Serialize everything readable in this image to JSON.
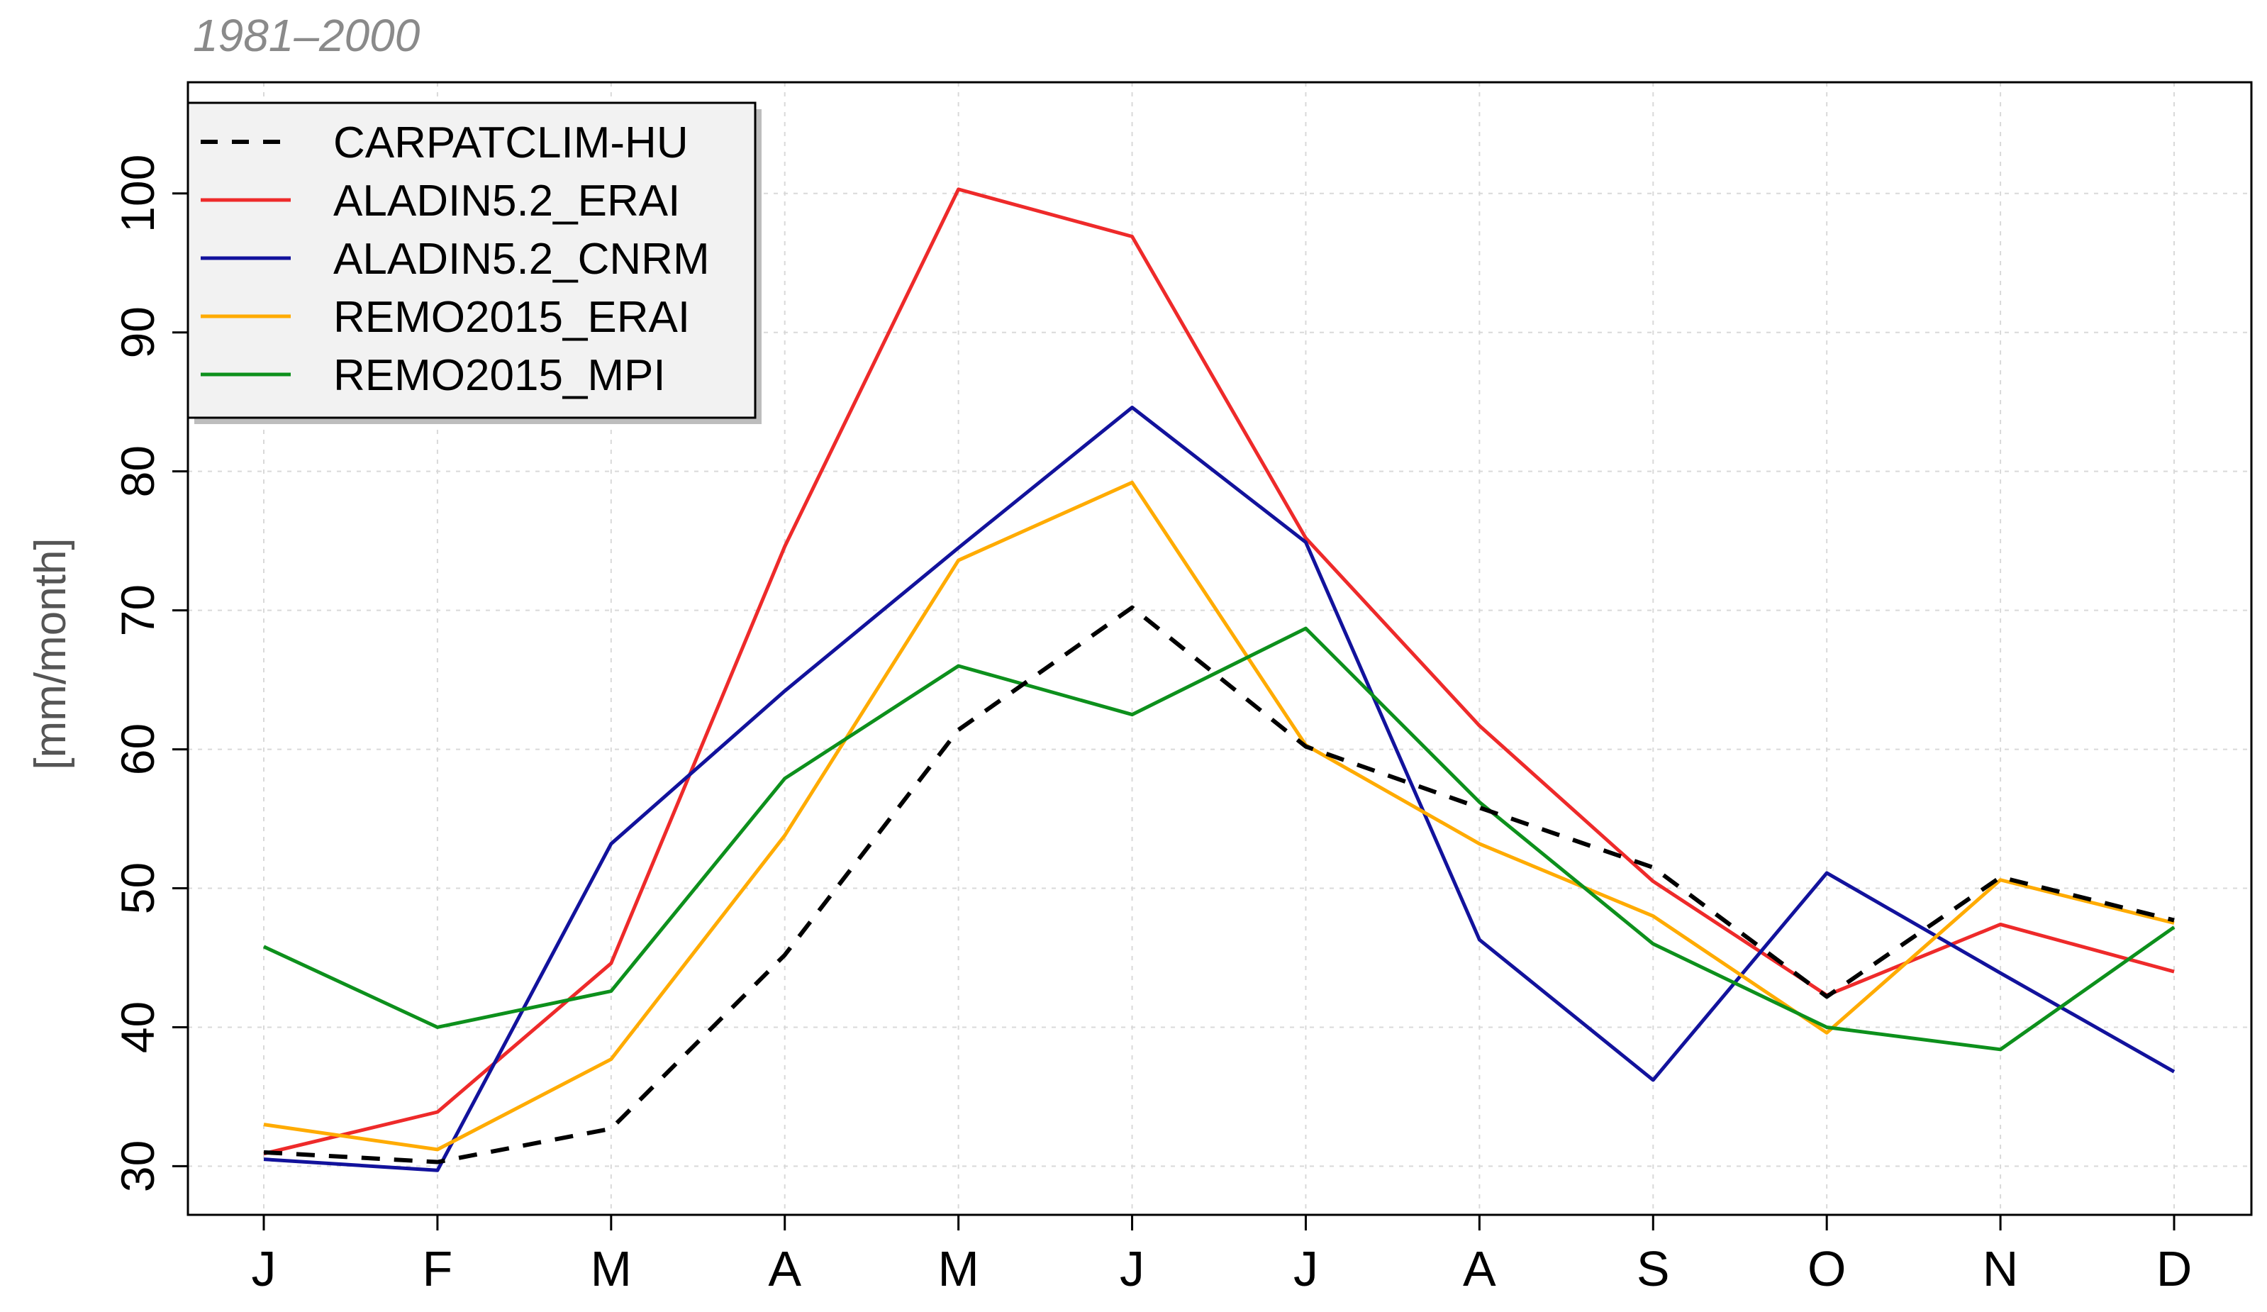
{
  "chart_data": {
    "type": "line",
    "title": "1981–2000",
    "xlabel": "",
    "ylabel": "[mm/month]",
    "categories": [
      "J",
      "F",
      "M",
      "A",
      "M",
      "J",
      "J",
      "A",
      "S",
      "O",
      "N",
      "D"
    ],
    "yticks": [
      30,
      40,
      50,
      60,
      70,
      80,
      90,
      100
    ],
    "ylim": [
      26.5,
      108
    ],
    "grid": true,
    "legend_position": "top-left",
    "series": [
      {
        "name": "CARPATCLIM-HU",
        "color": "#000000",
        "dashed": true,
        "values": [
          31.0,
          30.3,
          32.7,
          45.2,
          61.4,
          70.2,
          60.2,
          55.8,
          51.5,
          42.2,
          50.8,
          47.7
        ]
      },
      {
        "name": "ALADIN5.2_ERAI",
        "color": "#ee2a2a",
        "dashed": false,
        "values": [
          30.9,
          33.9,
          44.6,
          74.6,
          100.3,
          96.9,
          75.2,
          61.7,
          50.5,
          42.3,
          47.4,
          44.0
        ]
      },
      {
        "name": "ALADIN5.2_CNRM",
        "color": "#12129c",
        "dashed": false,
        "values": [
          30.5,
          29.7,
          53.2,
          64.2,
          74.5,
          84.6,
          74.9,
          46.3,
          36.2,
          51.1,
          43.9,
          36.8
        ]
      },
      {
        "name": "REMO2015_ERAI",
        "color": "#ffab00",
        "dashed": false,
        "values": [
          33.0,
          31.2,
          37.7,
          53.8,
          73.6,
          79.2,
          60.3,
          53.2,
          48.0,
          39.6,
          50.6,
          47.5
        ]
      },
      {
        "name": "REMO2015_MPI",
        "color": "#0d901c",
        "dashed": false,
        "values": [
          45.8,
          40.0,
          42.6,
          57.9,
          66.0,
          62.5,
          68.7,
          56.2,
          46.0,
          40.0,
          38.4,
          47.2
        ]
      }
    ]
  }
}
